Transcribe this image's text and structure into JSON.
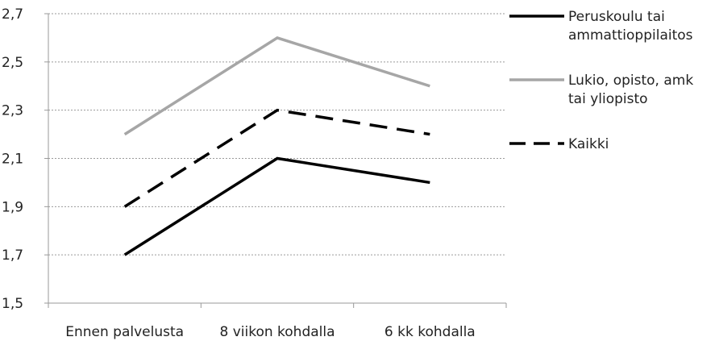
{
  "chart_data": {
    "type": "line",
    "categories": [
      "Ennen palvelusta",
      "8 viikon kohdalla",
      "6 kk kohdalla"
    ],
    "ylim": [
      1.5,
      2.7
    ],
    "yticks": [
      "1,5",
      "1,7",
      "1,9",
      "2,1",
      "2,3",
      "2,5",
      "2,7"
    ],
    "ytick_values": [
      1.5,
      1.7,
      1.9,
      2.1,
      2.3,
      2.5,
      2.7
    ],
    "grid": true,
    "legend_position": "right",
    "series": [
      {
        "name": "Peruskoulu tai ammattioppilaitos",
        "legend_lines": [
          "Peruskoulu tai",
          "ammattioppilaitos"
        ],
        "values": [
          1.7,
          2.1,
          2.0
        ],
        "color": "#000000",
        "style": "solid"
      },
      {
        "name": "Lukio, opisto, amk tai yliopisto",
        "legend_lines": [
          "Lukio, opisto, amk",
          "tai yliopisto"
        ],
        "values": [
          2.2,
          2.6,
          2.4
        ],
        "color": "#a6a6a6",
        "style": "solid"
      },
      {
        "name": "Kaikki",
        "legend_lines": [
          "Kaikki"
        ],
        "values": [
          1.9,
          2.3,
          2.2
        ],
        "color": "#000000",
        "style": "dashed"
      }
    ]
  }
}
